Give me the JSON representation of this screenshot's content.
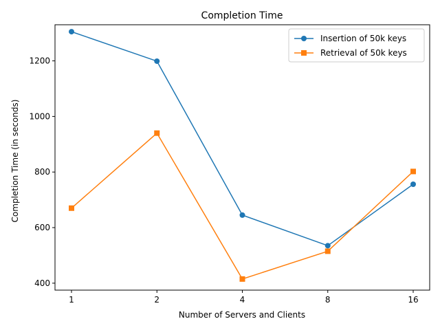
{
  "chart_data": {
    "type": "line",
    "title": "Completion Time",
    "xlabel": "Number of Servers and Clients",
    "ylabel": "Completion Time (in seconds)",
    "categories": [
      "1",
      "2",
      "4",
      "8",
      "16"
    ],
    "ylim": [
      375,
      1330
    ],
    "yticks": [
      400,
      600,
      800,
      1000,
      1200
    ],
    "grid": false,
    "legend_position": "top-right",
    "series": [
      {
        "name": "Insertion of 50k keys",
        "values": [
          1305,
          1199,
          645,
          535,
          756
        ],
        "color": "#1f77b4",
        "marker": "circle"
      },
      {
        "name": "Retrieval of 50k keys",
        "values": [
          670,
          940,
          415,
          515,
          802
        ],
        "color": "#ff7f0e",
        "marker": "square"
      }
    ]
  }
}
